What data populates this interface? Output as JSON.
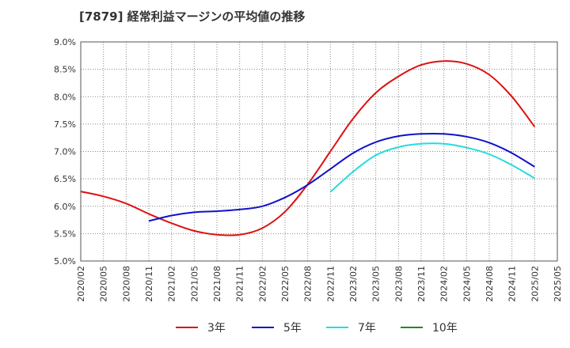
{
  "chart_data": {
    "type": "line",
    "title": "[7879]  経常利益マージンの平均値の推移",
    "xlabel": "",
    "ylabel": "",
    "ylim": [
      5.0,
      9.0
    ],
    "y_ticks": [
      "5.0%",
      "5.5%",
      "6.0%",
      "6.5%",
      "7.0%",
      "7.5%",
      "8.0%",
      "8.5%",
      "9.0%"
    ],
    "categories": [
      "2020/02",
      "2020/05",
      "2020/08",
      "2020/11",
      "2021/02",
      "2021/05",
      "2021/08",
      "2021/11",
      "2022/02",
      "2022/05",
      "2022/08",
      "2022/11",
      "2023/02",
      "2023/05",
      "2023/08",
      "2023/11",
      "2024/02",
      "2024/05",
      "2024/08",
      "2024/11",
      "2025/02",
      "2025/05"
    ],
    "grid": true,
    "legend_position": "bottom",
    "series": [
      {
        "name": "3年",
        "color": "#dd1111",
        "values": [
          6.27,
          6.18,
          6.05,
          5.86,
          5.69,
          5.55,
          5.48,
          5.48,
          5.6,
          5.9,
          6.4,
          7.0,
          7.6,
          8.07,
          8.37,
          8.58,
          8.65,
          8.6,
          8.4,
          8.0,
          7.45,
          null
        ]
      },
      {
        "name": "5年",
        "color": "#1111cc",
        "values": [
          null,
          null,
          null,
          5.73,
          5.83,
          5.89,
          5.91,
          5.94,
          6.0,
          6.16,
          6.39,
          6.68,
          6.97,
          7.17,
          7.28,
          7.32,
          7.32,
          7.27,
          7.16,
          6.97,
          6.72,
          null
        ]
      },
      {
        "name": "7年",
        "color": "#22dddd",
        "values": [
          null,
          null,
          null,
          null,
          null,
          null,
          null,
          null,
          null,
          null,
          null,
          6.26,
          6.63,
          6.93,
          7.08,
          7.14,
          7.14,
          7.07,
          6.95,
          6.75,
          6.51,
          null
        ]
      },
      {
        "name": "10年",
        "color": "#228822",
        "values": [
          null,
          null,
          null,
          null,
          null,
          null,
          null,
          null,
          null,
          null,
          null,
          null,
          null,
          null,
          null,
          null,
          null,
          null,
          null,
          null,
          null,
          null
        ]
      }
    ]
  }
}
